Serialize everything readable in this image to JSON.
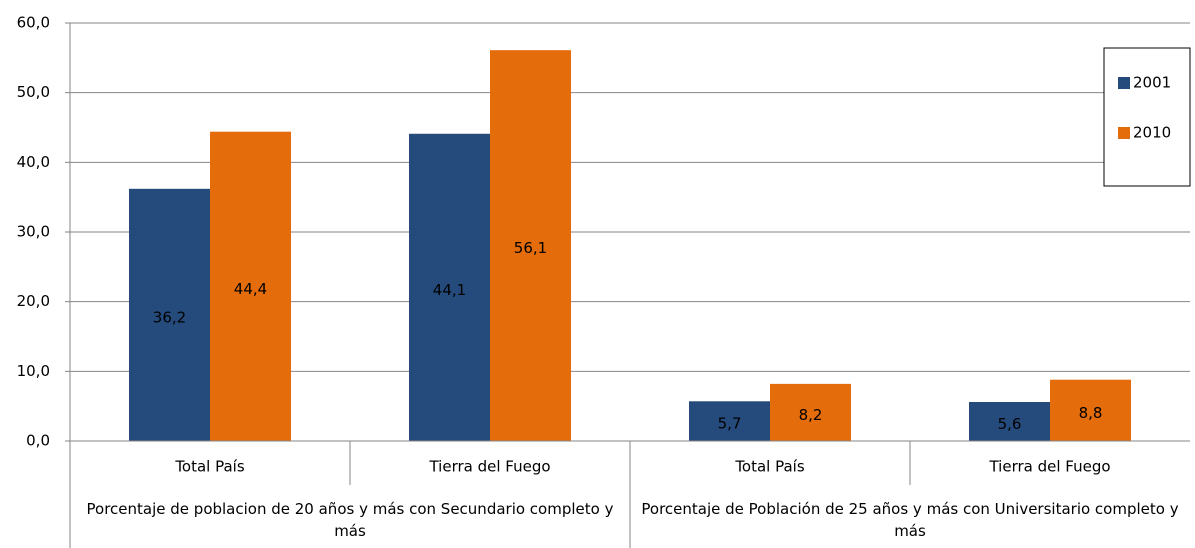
{
  "chart_data": {
    "type": "bar",
    "groups": [
      {
        "name": "Porcentaje de poblacion de 20 años y más con Secundario completo y más",
        "categories": [
          "Total País",
          "Tierra del Fuego"
        ]
      },
      {
        "name": "Porcentaje de Población de 25 años y más con Universitario completo y más",
        "categories": [
          "Total País",
          "Tierra del Fuego"
        ]
      }
    ],
    "series": [
      {
        "name": "2001",
        "color": "#254a7c",
        "values": [
          36.2,
          44.1,
          5.7,
          5.6
        ],
        "value_labels": [
          "36,2",
          "44,1",
          "5,7",
          "5,6"
        ]
      },
      {
        "name": "2010",
        "color": "#e46c0a",
        "values": [
          44.4,
          56.1,
          8.2,
          8.8
        ],
        "value_labels": [
          "44,4",
          "56,1",
          "8,2",
          "8,8"
        ]
      }
    ],
    "ylim": [
      0,
      60
    ],
    "yticks": [
      {
        "value": 0,
        "label": "0,0"
      },
      {
        "value": 10,
        "label": "10,0"
      },
      {
        "value": 20,
        "label": "20,0"
      },
      {
        "value": 30,
        "label": "30,0"
      },
      {
        "value": 40,
        "label": "40,0"
      },
      {
        "value": 50,
        "label": "50,0"
      },
      {
        "value": 60,
        "label": "60,0"
      }
    ],
    "grid": true,
    "legend": "right"
  }
}
